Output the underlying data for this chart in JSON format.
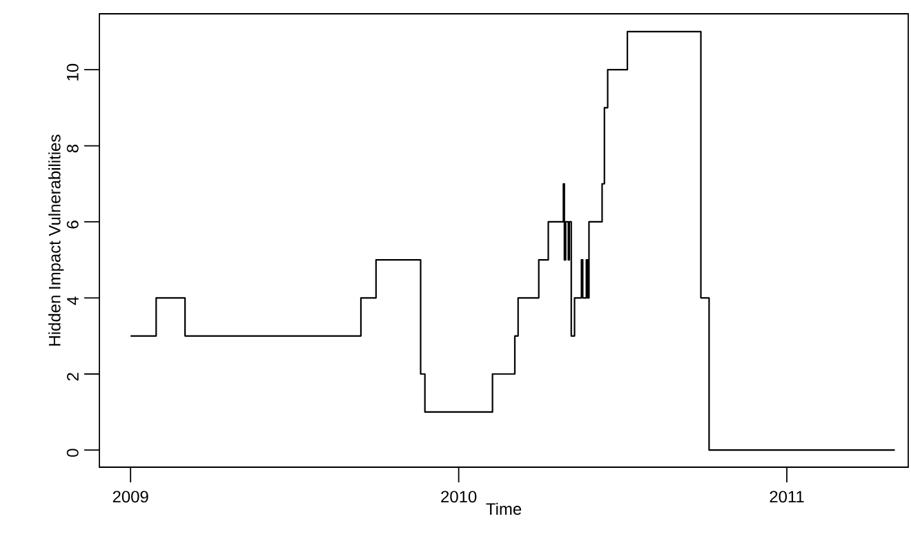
{
  "chart_data": {
    "type": "step",
    "xlabel": "Time",
    "ylabel": "Hidden Impact Vulnerabilities",
    "x": [
      2009.0,
      2009.078,
      2009.166,
      2009.702,
      2009.748,
      2009.884,
      2009.897,
      2010.103,
      2010.171,
      2010.181,
      2010.244,
      2010.273,
      2010.319,
      2010.322,
      2010.326,
      2010.334,
      2010.337,
      2010.343,
      2010.353,
      2010.374,
      2010.378,
      2010.389,
      2010.393,
      2010.397,
      2010.437,
      2010.444,
      2010.454,
      2010.514,
      2010.738,
      2010.763,
      2011.329
    ],
    "values": [
      3,
      4,
      3,
      4,
      5,
      2,
      1,
      2,
      3,
      4,
      5,
      6,
      7,
      5,
      6,
      5,
      6,
      3,
      4,
      5,
      4,
      5,
      4,
      6,
      7,
      9,
      10,
      11,
      4,
      0,
      0
    ],
    "color": "#000000",
    "xlim": [
      2008.905,
      2011.37
    ],
    "ylim": [
      -0.45,
      11.47
    ],
    "xticks": [
      2009,
      2010,
      2011
    ],
    "yticks": [
      0,
      2,
      4,
      6,
      8,
      10
    ]
  }
}
